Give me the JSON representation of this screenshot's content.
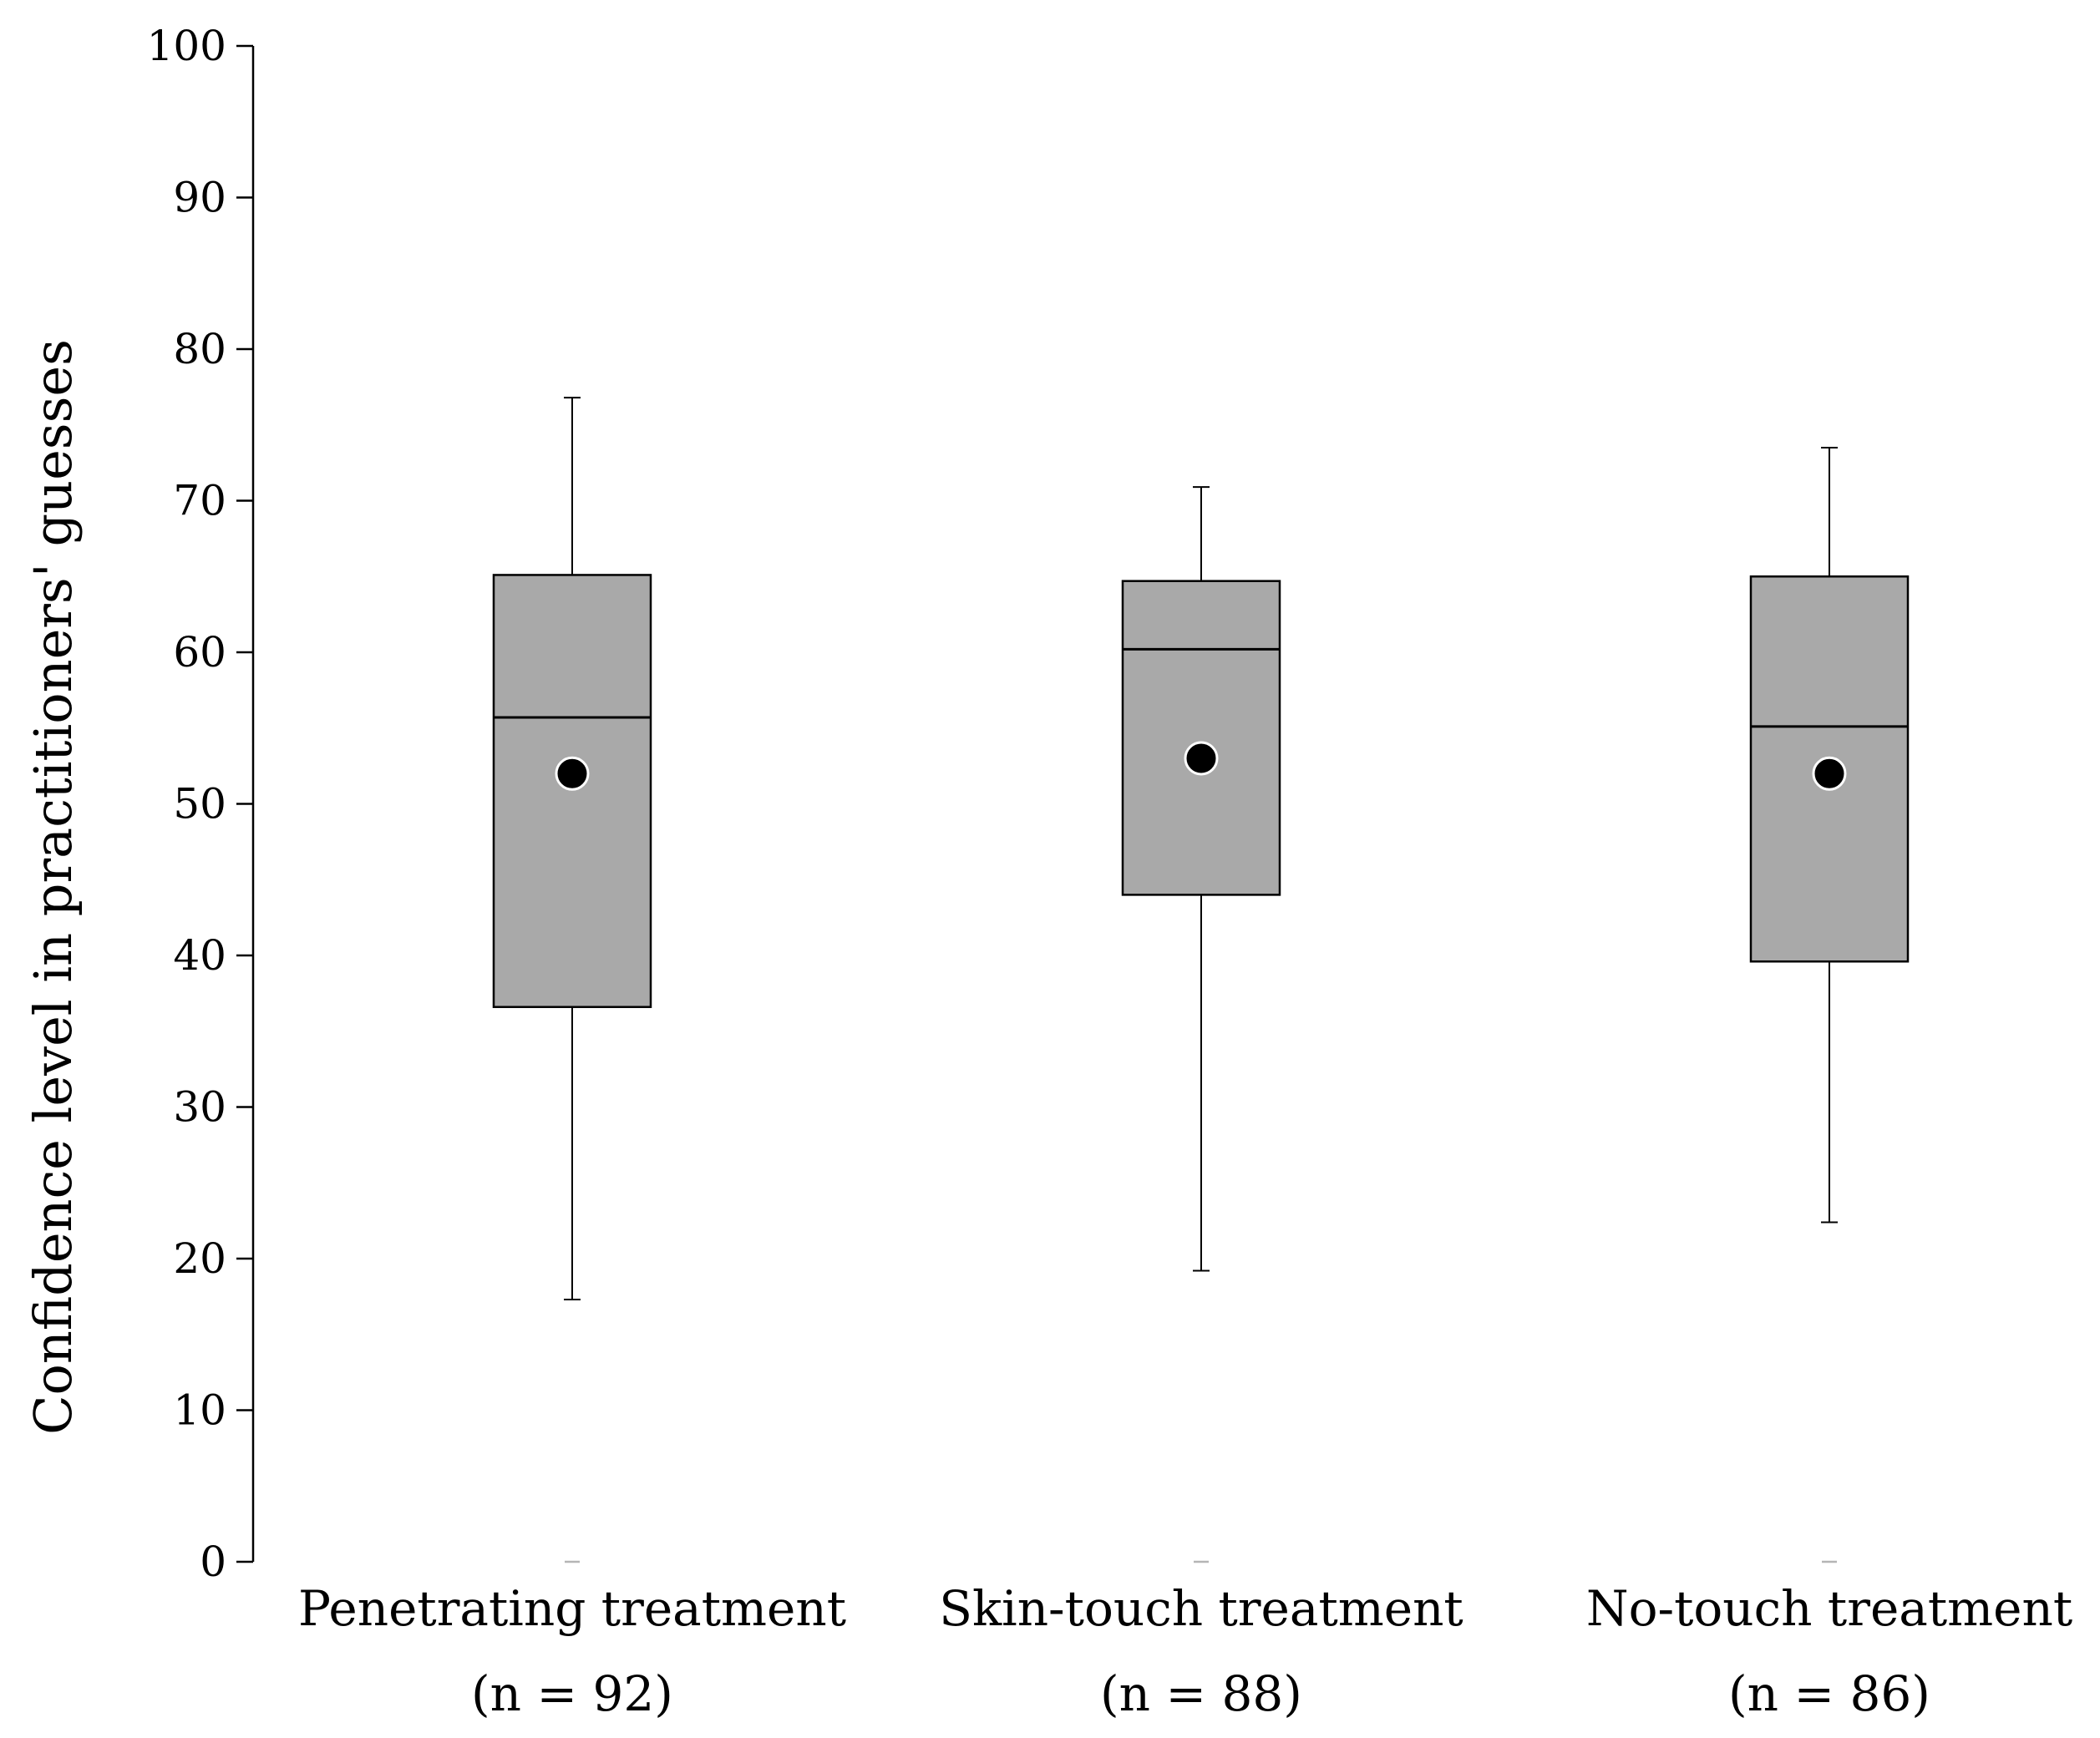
{
  "chart_data": {
    "type": "boxplot",
    "title": "",
    "xlabel": "",
    "ylabel": "Confidence level in practitioners' guesses",
    "ylim": [
      0,
      100
    ],
    "yticks": [
      "0",
      "10",
      "20",
      "30",
      "40",
      "50",
      "60",
      "70",
      "80",
      "90",
      "100"
    ],
    "grid": false,
    "legend": "none",
    "colors": {
      "box_fill": "#a9a9a9",
      "box_stroke": "#000000",
      "mean_marker": "#000000",
      "mean_marker_outline": "#ffffff"
    },
    "categories": [
      {
        "label": "Penetrating treatment",
        "n_label": "(n = 92)",
        "whisker_low": 17.3,
        "q1": 36.6,
        "median": 55.7,
        "q3": 65.1,
        "whisker_high": 76.8,
        "mean": 52.0,
        "min_marker": 0
      },
      {
        "label": "Skin-touch treatment",
        "n_label": "(n = 88)",
        "whisker_low": 19.2,
        "q1": 44.0,
        "median": 60.2,
        "q3": 64.7,
        "whisker_high": 70.9,
        "mean": 53.0,
        "min_marker": 0
      },
      {
        "label": "No-touch treatment",
        "n_label": "(n = 86)",
        "whisker_low": 22.4,
        "q1": 39.6,
        "median": 55.1,
        "q3": 65.0,
        "whisker_high": 73.5,
        "mean": 52.0,
        "min_marker": 0
      }
    ]
  }
}
